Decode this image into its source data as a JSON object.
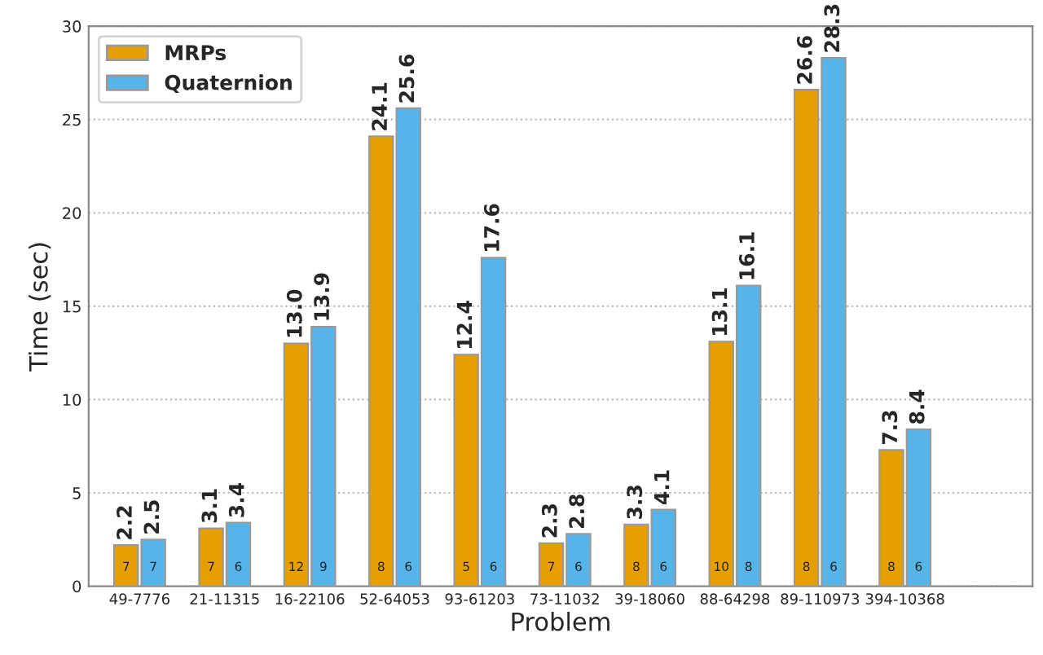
{
  "chart_data": {
    "type": "bar",
    "xlabel": "Problem",
    "ylabel": "Time (sec)",
    "categories": [
      "49-7776",
      "21-11315",
      "16-22106",
      "52-64053",
      "93-61203",
      "73-11032",
      "39-18060",
      "88-64298",
      "89-110973",
      "394-10368"
    ],
    "series": [
      {
        "name": "MRPs",
        "color": "#e69f00",
        "values": [
          2.2,
          3.1,
          13.0,
          24.1,
          12.4,
          2.3,
          3.3,
          13.1,
          26.6,
          7.3
        ],
        "value_labels": [
          "2.2",
          "3.1",
          "13.0",
          "24.1",
          "12.4",
          "2.3",
          "3.3",
          "13.1",
          "26.6",
          "7.3"
        ]
      },
      {
        "name": "Quaternion",
        "color": "#56b4e9",
        "values": [
          2.5,
          3.4,
          13.9,
          25.6,
          17.6,
          2.8,
          4.1,
          16.1,
          28.3,
          8.4
        ],
        "value_labels": [
          "2.5",
          "3.4",
          "13.9",
          "25.6",
          "17.6",
          "2.8",
          "4.1",
          "16.1",
          "28.3",
          "8.4"
        ]
      }
    ],
    "annotations": [
      {
        "text": "7",
        "x": "49-7776",
        "y": 1
      },
      {
        "text": "7",
        "x": "49-7776",
        "y": 1
      },
      {
        "text": "7",
        "x": "21-11315",
        "y": 1
      },
      {
        "text": "6",
        "x": "21-11315",
        "y": 1
      },
      {
        "text": "12",
        "x": "16-22106",
        "y": 1
      },
      {
        "text": "9",
        "x": "16-22106",
        "y": 1
      },
      {
        "text": "8",
        "x": "52-64053",
        "y": 1
      },
      {
        "text": "6",
        "x": "52-64053",
        "y": 1
      },
      {
        "text": "5",
        "x": "93-61203",
        "y": 1
      },
      {
        "text": "6",
        "x": "93-61203",
        "y": 1
      },
      {
        "text": "7",
        "x": "73-11032",
        "y": 1
      },
      {
        "text": "6",
        "x": "73-11032",
        "y": 1
      },
      {
        "text": "8",
        "x": "39-18060",
        "y": 1
      },
      {
        "text": "6",
        "x": "39-18060",
        "y": 1
      },
      {
        "text": "10",
        "x": "88-64298",
        "y": 1
      },
      {
        "text": "8",
        "x": "88-64298",
        "y": 1
      },
      {
        "text": "8",
        "x": "89-110973",
        "y": 1
      },
      {
        "text": "6",
        "x": "89-110973",
        "y": 1
      },
      {
        "text": "8",
        "x": "394-10368",
        "y": 1
      },
      {
        "text": "6",
        "x": "394-10368",
        "y": 1
      }
    ],
    "ylim": [
      0,
      30
    ],
    "yticks": [
      0,
      5,
      10,
      15,
      20,
      25,
      30
    ],
    "grid": "y",
    "legend": "top left"
  }
}
